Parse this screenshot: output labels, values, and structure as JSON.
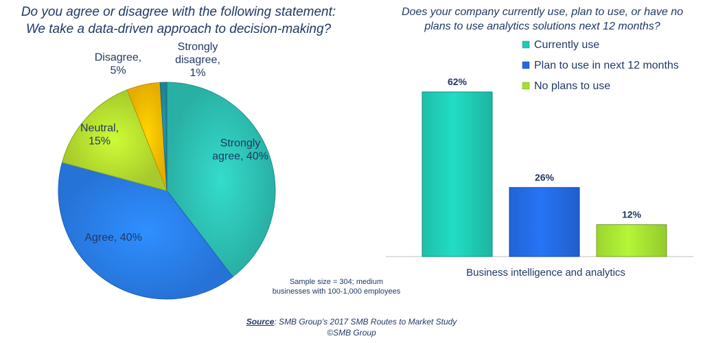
{
  "pie": {
    "title_line1": "Do you agree or disagree with the following statement:",
    "title_line2": "We take a data-driven approach to decision-making?"
  },
  "bar": {
    "title_line1": "Does your company currently use, plan to use, or have no",
    "title_line2": "plans to use analytics solutions next 12 months?"
  },
  "chart_data": [
    {
      "type": "pie",
      "title": "Do you agree or disagree with the following statement: We take a data-driven approach to decision-making?",
      "slices": [
        {
          "label": "Strongly agree",
          "value": 40,
          "display": [
            "Strongly",
            "agree, 40%"
          ],
          "color": "#2ec4b6"
        },
        {
          "label": "Agree",
          "value": 40,
          "display": [
            "Agree, 40%"
          ],
          "color": "#2a80f0"
        },
        {
          "label": "Neutral",
          "value": 15,
          "display": [
            "Neutral,",
            "15%"
          ],
          "color": "#b8e030"
        },
        {
          "label": "Disagree",
          "value": 5,
          "display": [
            "Disagree,",
            "5%"
          ],
          "color": "#ffc000"
        },
        {
          "label": "Strongly disagree",
          "value": 1,
          "display": [
            "Strongly",
            "disagree,",
            "1%"
          ],
          "color": "#1f8fa6"
        }
      ]
    },
    {
      "type": "bar",
      "title": "Does your company currently use, plan to use, or have no plans to use analytics solutions next 12 months?",
      "categories": [
        "Business intelligence and analytics"
      ],
      "series": [
        {
          "name": "Currently use",
          "values": [
            62
          ],
          "label": "62%",
          "color": "#1fc9b2"
        },
        {
          "name": "Plan to use in next 12 months",
          "values": [
            26
          ],
          "label": "26%",
          "color": "#2369e0"
        },
        {
          "name": "No plans to use",
          "values": [
            12
          ],
          "label": "12%",
          "color": "#a4e032"
        }
      ],
      "ylim": [
        0,
        70
      ],
      "legend": "top-right",
      "grid": false
    }
  ],
  "note": {
    "line1": "Sample size = 304; medium",
    "line2": "businesses with 100-1,000 employees"
  },
  "source": {
    "label": "Source",
    "text": ": SMB Group’s 2017 SMB Routes to Market Study",
    "copyright": "©SMB Group"
  }
}
